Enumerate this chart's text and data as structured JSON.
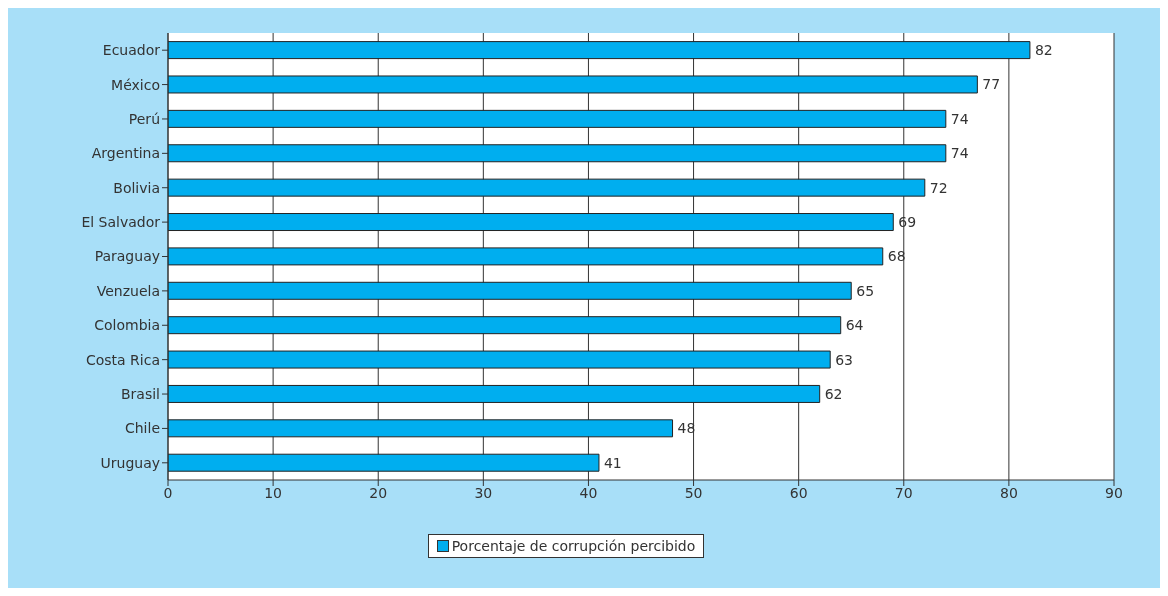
{
  "chart_data": {
    "type": "bar",
    "orientation": "horizontal",
    "categories": [
      "Ecuador",
      "México",
      "Perú",
      "Argentina",
      "Bolivia",
      "El Salvador",
      "Paraguay",
      "Venzuela",
      "Colombia",
      "Costa Rica",
      "Brasil",
      "Chile",
      "Uruguay"
    ],
    "series": [
      {
        "name": "Porcentaje de corrupción percibido",
        "color": "#00aeef",
        "values": [
          82,
          77,
          74,
          74,
          72,
          69,
          68,
          65,
          64,
          63,
          62,
          48,
          41
        ]
      }
    ],
    "xlim": [
      0,
      90
    ],
    "xticks": [
      0,
      10,
      20,
      30,
      40,
      50,
      60,
      70,
      80,
      90
    ],
    "grid": "x",
    "legend": "bottom",
    "data_labels": true
  }
}
